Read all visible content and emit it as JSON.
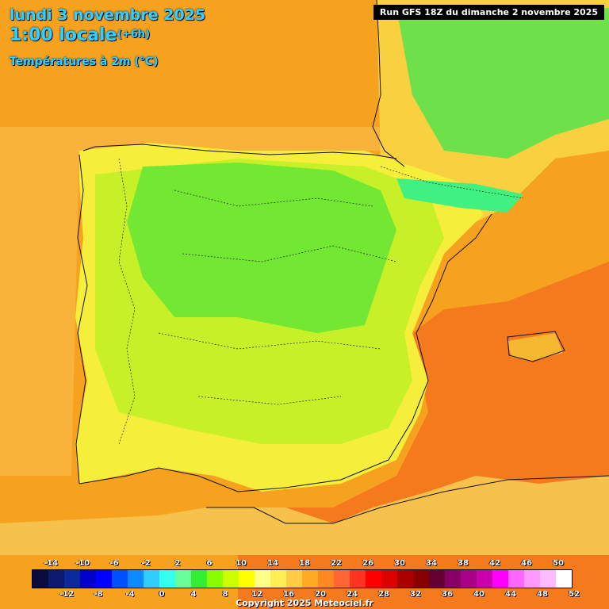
{
  "header": {
    "date": "lundi 3 novembre 2025",
    "time": "1:00 locale",
    "lead": "(+6h)",
    "parameter": "Températures à 2m (°C)"
  },
  "run_info": "Run GFS 18Z du dimanche 2 novembre 2025",
  "copyright": "Copyright 2025 Meteociel.fr",
  "legend": {
    "labels_top": [
      "-14",
      "-10",
      "-6",
      "-2",
      "2",
      "6",
      "10",
      "14",
      "18",
      "22",
      "26",
      "30",
      "34",
      "38",
      "42",
      "46",
      "50"
    ],
    "labels_bottom": [
      "-12",
      "-8",
      "-4",
      "0",
      "4",
      "8",
      "12",
      "16",
      "20",
      "24",
      "28",
      "32",
      "36",
      "40",
      "44",
      "48",
      "52"
    ],
    "colors": [
      "#0a0a3c",
      "#0c1a6e",
      "#0a2a9c",
      "#0000c8",
      "#0000ff",
      "#0050ff",
      "#0a8cff",
      "#33ccff",
      "#33ffee",
      "#66ff99",
      "#33ee33",
      "#88ff00",
      "#ccff00",
      "#ffff00",
      "#ffff88",
      "#ffee55",
      "#ffcc44",
      "#ffaa22",
      "#ff8822",
      "#ff6633",
      "#ff3322",
      "#ff0000",
      "#dd0000",
      "#aa0000",
      "#880000",
      "#660033",
      "#880066",
      "#aa0088",
      "#cc00aa",
      "#ff00ff",
      "#ff66ff",
      "#ff99ff",
      "#ffbbff",
      "#ffffff"
    ]
  }
}
